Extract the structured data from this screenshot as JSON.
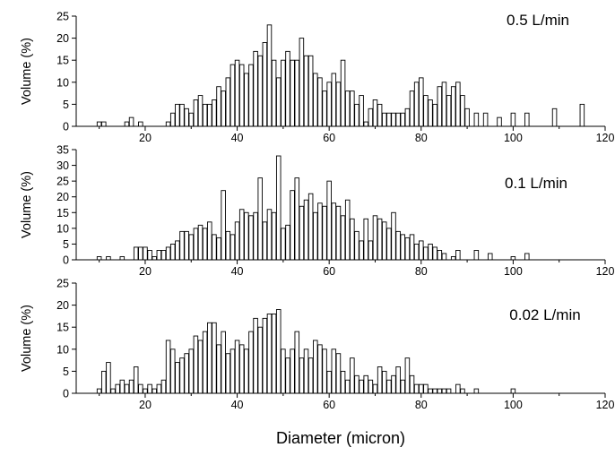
{
  "xlabel": "Diameter (micron)",
  "bar_color": "#ffffff",
  "edge_color": "#000000",
  "chart_data": [
    {
      "type": "bar",
      "label": "0.5 L/min",
      "ylabel": "Volume (%)",
      "xlim": [
        5,
        120
      ],
      "ylim": [
        0,
        25
      ],
      "xticks": [
        20,
        40,
        60,
        80,
        100,
        120
      ],
      "yticks": [
        0,
        5,
        10,
        15,
        20,
        25
      ],
      "x": [
        10,
        11,
        16,
        17,
        19,
        25,
        26,
        27,
        28,
        29,
        30,
        31,
        32,
        33,
        34,
        35,
        36,
        37,
        38,
        39,
        40,
        41,
        42,
        43,
        44,
        45,
        46,
        47,
        48,
        49,
        50,
        51,
        52,
        53,
        54,
        55,
        56,
        57,
        58,
        59,
        60,
        61,
        62,
        63,
        64,
        65,
        66,
        67,
        68,
        69,
        70,
        71,
        72,
        73,
        74,
        75,
        76,
        77,
        78,
        79,
        80,
        81,
        82,
        83,
        84,
        85,
        86,
        87,
        88,
        89,
        90,
        92,
        94,
        97,
        100,
        103,
        109,
        115
      ],
      "values": [
        1,
        1,
        1,
        2,
        1,
        1,
        3,
        5,
        5,
        4,
        3,
        6,
        7,
        5,
        5,
        6,
        9,
        8,
        11,
        14,
        15,
        14,
        12,
        14,
        17,
        16,
        19,
        23,
        15,
        11,
        15,
        17,
        15,
        15,
        20,
        16,
        16,
        12,
        11,
        8,
        10,
        12,
        10,
        15,
        8,
        8,
        5,
        7,
        1,
        4,
        6,
        5,
        3,
        3,
        3,
        3,
        3,
        4,
        8,
        10,
        11,
        7,
        6,
        5,
        9,
        10,
        7,
        9,
        10,
        7,
        4,
        3,
        3,
        2,
        3,
        3,
        4,
        5
      ]
    },
    {
      "type": "bar",
      "label": "0.1 L/min",
      "ylabel": "Volume (%)",
      "xlim": [
        5,
        120
      ],
      "ylim": [
        0,
        35
      ],
      "xticks": [
        20,
        40,
        60,
        80,
        100,
        120
      ],
      "yticks": [
        0,
        5,
        10,
        15,
        20,
        25,
        30,
        35
      ],
      "x": [
        10,
        12,
        15,
        18,
        19,
        20,
        21,
        22,
        23,
        24,
        25,
        26,
        27,
        28,
        29,
        30,
        31,
        32,
        33,
        34,
        35,
        36,
        37,
        38,
        39,
        40,
        41,
        42,
        43,
        44,
        45,
        46,
        47,
        48,
        49,
        50,
        51,
        52,
        53,
        54,
        55,
        56,
        57,
        58,
        59,
        60,
        61,
        62,
        63,
        64,
        65,
        66,
        67,
        68,
        69,
        70,
        71,
        72,
        73,
        74,
        75,
        76,
        77,
        78,
        79,
        80,
        81,
        82,
        83,
        84,
        85,
        87,
        88,
        92,
        95,
        100,
        103
      ],
      "values": [
        1,
        1,
        1,
        4,
        4,
        4,
        3,
        1,
        3,
        3,
        4,
        5,
        6,
        9,
        9,
        8,
        10,
        11,
        10,
        12,
        8,
        7,
        22,
        9,
        8,
        12,
        16,
        15,
        14,
        15,
        26,
        12,
        16,
        15,
        33,
        10,
        11,
        22,
        26,
        17,
        19,
        21,
        15,
        18,
        17,
        25,
        18,
        17,
        14,
        19,
        13,
        9,
        6,
        13,
        6,
        14,
        13,
        12,
        10,
        15,
        9,
        8,
        7,
        8,
        5,
        6,
        4,
        5,
        4,
        3,
        2,
        1,
        3,
        3,
        2,
        1,
        2
      ]
    },
    {
      "type": "bar",
      "label": "0.02 L/min",
      "ylabel": "Volume (%)",
      "xlim": [
        5,
        120
      ],
      "ylim": [
        0,
        25
      ],
      "xticks": [
        20,
        40,
        60,
        80,
        100,
        120
      ],
      "yticks": [
        0,
        5,
        10,
        15,
        20,
        25
      ],
      "x": [
        10,
        11,
        12,
        13,
        14,
        15,
        16,
        17,
        18,
        19,
        20,
        21,
        22,
        23,
        24,
        25,
        26,
        27,
        28,
        29,
        30,
        31,
        32,
        33,
        34,
        35,
        36,
        37,
        38,
        39,
        40,
        41,
        42,
        43,
        44,
        45,
        46,
        47,
        48,
        49,
        50,
        51,
        52,
        53,
        54,
        55,
        56,
        57,
        58,
        59,
        60,
        61,
        62,
        63,
        64,
        65,
        66,
        67,
        68,
        69,
        70,
        71,
        72,
        73,
        74,
        75,
        76,
        77,
        78,
        79,
        80,
        81,
        82,
        83,
        84,
        85,
        86,
        88,
        89,
        92,
        100
      ],
      "values": [
        1,
        5,
        7,
        1,
        2,
        3,
        2,
        3,
        6,
        2,
        1,
        2,
        1,
        2,
        3,
        12,
        10,
        7,
        8,
        9,
        10,
        13,
        12,
        14,
        16,
        16,
        11,
        14,
        9,
        10,
        12,
        11,
        10,
        14,
        17,
        15,
        17,
        18,
        18,
        19,
        10,
        8,
        10,
        14,
        8,
        10,
        8,
        12,
        11,
        10,
        5,
        10,
        9,
        5,
        3,
        8,
        4,
        3,
        4,
        3,
        2,
        6,
        5,
        3,
        4,
        6,
        3,
        8,
        4,
        2,
        2,
        2,
        1,
        1,
        1,
        1,
        1,
        2,
        1,
        1,
        1
      ]
    }
  ]
}
